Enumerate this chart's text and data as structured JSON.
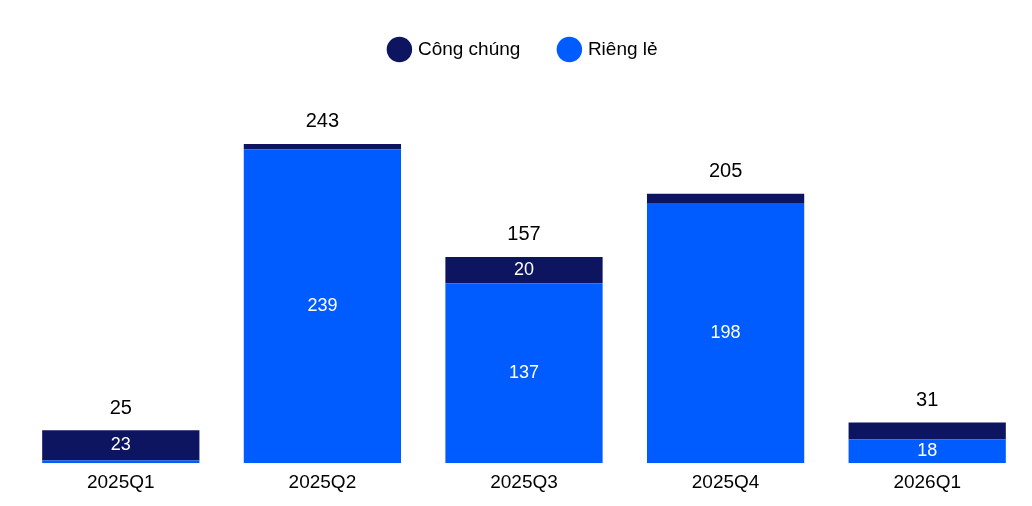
{
  "chart_data": {
    "type": "bar",
    "stacked": true,
    "legend": "top",
    "categories": [
      "2025Q1",
      "2025Q2",
      "2025Q3",
      "2025Q4",
      "2026Q1"
    ],
    "series": [
      {
        "name": "Riêng lẻ",
        "color": "#005cff",
        "values": [
          2,
          239,
          137,
          198,
          18
        ],
        "value_labels": [
          null,
          "239",
          "137",
          "198",
          "18"
        ]
      },
      {
        "name": "Công chúng",
        "color": "#0d1460",
        "values": [
          23,
          4,
          20,
          7,
          13
        ],
        "value_labels": [
          "23",
          null,
          "20",
          null,
          null
        ]
      }
    ],
    "totals": [
      "25",
      "243",
      "157",
      "205",
      "31"
    ]
  }
}
